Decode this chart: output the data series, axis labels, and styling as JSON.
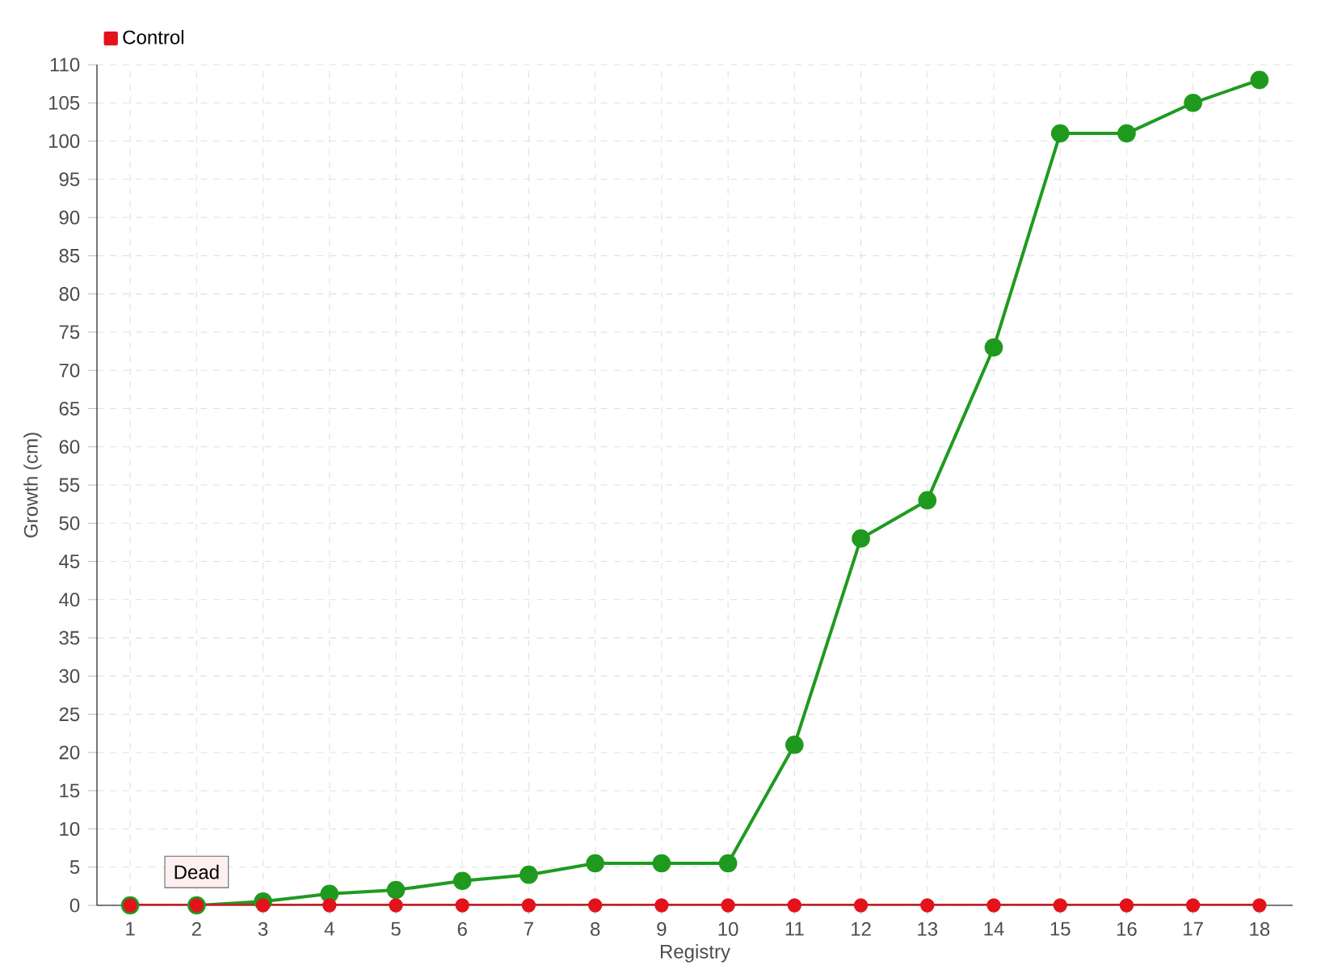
{
  "chart_data": {
    "type": "line",
    "xlabel": "Registry",
    "ylabel": "Growth (cm)",
    "categories": [
      "1",
      "2",
      "3",
      "4",
      "5",
      "6",
      "7",
      "8",
      "9",
      "10",
      "11",
      "12",
      "13",
      "14",
      "15",
      "16",
      "17",
      "18"
    ],
    "series": [
      {
        "color": "#1f9a1f",
        "values": [
          0,
          0,
          0.5,
          1.5,
          2,
          3.2,
          4,
          5.5,
          5.5,
          5.5,
          21,
          48,
          53,
          73,
          101,
          101,
          105,
          108
        ]
      },
      {
        "name": "Control",
        "color": "#e3121b",
        "values": [
          0,
          0,
          0,
          0,
          0,
          0,
          0,
          0,
          0,
          0,
          0,
          0,
          0,
          0,
          0,
          0,
          0,
          0
        ]
      }
    ],
    "ylim": [
      0,
      110
    ],
    "yticks": [
      0,
      5,
      10,
      15,
      20,
      25,
      30,
      35,
      40,
      45,
      50,
      55,
      60,
      65,
      70,
      75,
      80,
      85,
      90,
      95,
      100,
      105,
      110
    ],
    "grid": true,
    "legend": "top left",
    "marker": "circle",
    "line_style": "solid",
    "annotations": [
      {
        "text": "Dead",
        "x": "2",
        "y": 0
      }
    ]
  }
}
